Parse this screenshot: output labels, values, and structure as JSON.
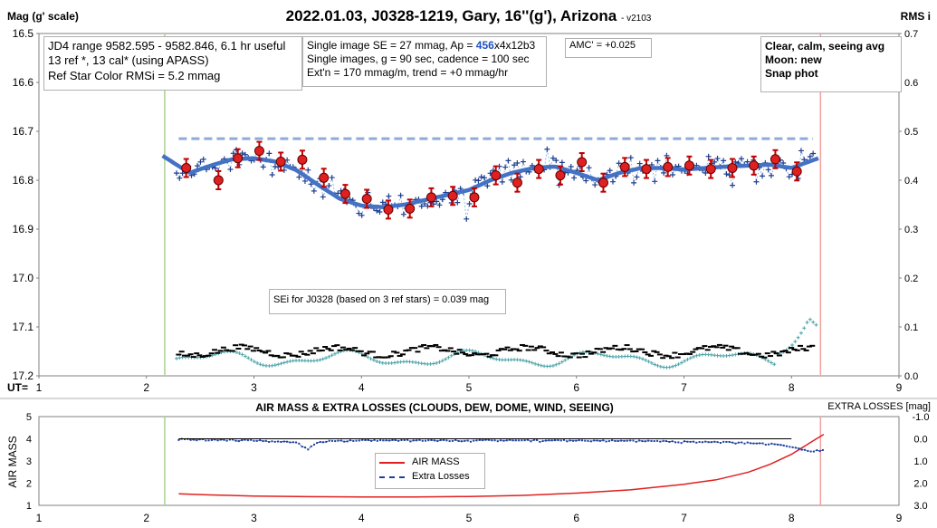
{
  "title": "2022.01.03, J0328-1219, Gary, 16''(g'), Arizona",
  "title_suffix": "- v2103",
  "top": {
    "ylabel_left": "Mag (g' scale)",
    "ylabel_right": "RMS i",
    "xlabel": "UT=",
    "y_ticks_left": [
      "16.5",
      "16.6",
      "16.7",
      "16.8",
      "16.9",
      "17.0",
      "17.1",
      "17.2"
    ],
    "y_ticks_right": [
      "0.7",
      "0.6",
      "0.5",
      "0.4",
      "0.3",
      "0.2",
      "0.1",
      "0.0"
    ],
    "x_ticks": [
      "1",
      "2",
      "3",
      "4",
      "5",
      "6",
      "7",
      "8",
      "9"
    ],
    "box1": [
      "JD4 range 9582.595 - 9582.846, 6.1 hr useful",
      "13 ref *, 13 cal* (using APASS)",
      "Ref Star Color RMSi = 5.2 mmag"
    ],
    "box2_line1_prefix": "Single image SE = 27 mmag, Ap = ",
    "box2_ap_value": "456",
    "box2_ap_suffix": "x4x12b3",
    "box2_line2": "Single images, g = 90 sec, cadence = 100 sec",
    "box2_line3": "Ext'n = 170 mmag/m, trend = +0 mmag/hr",
    "box3": "AMC' = +0.025",
    "box4": [
      "Clear, calm, seeing avg",
      "Moon: new",
      "Snap phot"
    ],
    "box5": "SEi for J0328 (based on 3 ref stars) = 0.039 mag"
  },
  "bottom": {
    "title": "AIR MASS & EXTRA LOSSES (CLOUDS, DEW, DOME, WIND, SEEING)",
    "right_header": "EXTRA LOSSES [mag]",
    "ylabel_left": "AIR MASS",
    "y_ticks_left": [
      "5",
      "4",
      "3",
      "2",
      "1"
    ],
    "y_ticks_right": [
      "-1.0",
      "0.0",
      "1.0",
      "2.0",
      "3.0"
    ],
    "x_ticks": [
      "1",
      "2",
      "3",
      "4",
      "5",
      "6",
      "7",
      "8",
      "9"
    ],
    "legend_airmass": "AIR MASS",
    "legend_losses": "Extra Losses"
  },
  "colors": {
    "fit": "#4472c4",
    "points": "#1f3f8f",
    "dashed": "#8eaadb",
    "red": "#e02020",
    "teal": "#4aa3a8",
    "black": "#000000",
    "green": "#a9d18e",
    "pink": "#f4a0a0"
  },
  "chart_data": [
    {
      "type": "scatter",
      "title": "2022.01.03, J0328-1219, Gary, 16''(g'), Arizona",
      "xlabel": "UT=",
      "ylabel": "Mag (g' scale)",
      "xlim": [
        1,
        9
      ],
      "ylim": [
        17.2,
        16.5
      ],
      "y2lim": [
        0.0,
        0.7
      ],
      "start_ut": 2.17,
      "end_ut": 8.27,
      "reference_mag": 16.715,
      "binned_means": {
        "x": [
          2.37,
          2.67,
          2.85,
          3.05,
          3.25,
          3.45,
          3.65,
          3.85,
          4.05,
          4.25,
          4.45,
          4.65,
          4.85,
          5.05,
          5.25,
          5.45,
          5.65,
          5.85,
          6.05,
          6.25,
          6.45,
          6.65,
          6.85,
          7.05,
          7.25,
          7.45,
          7.65,
          7.85,
          8.05
        ],
        "y": [
          16.775,
          16.8,
          16.755,
          16.74,
          16.762,
          16.758,
          16.795,
          16.828,
          16.838,
          16.86,
          16.858,
          16.835,
          16.832,
          16.835,
          16.79,
          16.805,
          16.777,
          16.79,
          16.763,
          16.805,
          16.773,
          16.777,
          16.773,
          16.77,
          16.777,
          16.775,
          16.77,
          16.757,
          16.782
        ]
      },
      "fit_curve": {
        "x": [
          2.15,
          2.4,
          2.6,
          2.8,
          3.0,
          3.2,
          3.4,
          3.6,
          3.8,
          4.0,
          4.2,
          4.4,
          4.6,
          4.8,
          5.0,
          5.2,
          5.4,
          5.6,
          5.8,
          6.0,
          6.2,
          6.4,
          6.6,
          6.8,
          7.0,
          7.2,
          7.4,
          7.6,
          7.8,
          8.0,
          8.25
        ],
        "y": [
          16.75,
          16.785,
          16.77,
          16.757,
          16.755,
          16.762,
          16.78,
          16.81,
          16.838,
          16.852,
          16.855,
          16.85,
          16.84,
          16.83,
          16.82,
          16.8,
          16.785,
          16.775,
          16.772,
          16.785,
          16.8,
          16.785,
          16.775,
          16.775,
          16.778,
          16.775,
          16.772,
          16.77,
          16.768,
          16.775,
          16.755
        ]
      },
      "rms_series": {
        "name": "RMS",
        "note": "teal crosses near 0.02-0.13 on right axis"
      }
    },
    {
      "type": "line",
      "title": "AIR MASS & EXTRA LOSSES (CLOUDS, DEW, DOME, WIND, SEEING)",
      "xlim": [
        1,
        9
      ],
      "ylim": [
        1,
        5
      ],
      "y2lim": [
        3.0,
        -1.0
      ],
      "series": [
        {
          "name": "AIR MASS",
          "x": [
            2.3,
            2.6,
            3.0,
            3.5,
            4.0,
            4.5,
            5.0,
            5.5,
            6.0,
            6.5,
            7.0,
            7.3,
            7.6,
            7.8,
            8.0,
            8.1,
            8.2,
            8.3
          ],
          "y": [
            1.52,
            1.47,
            1.42,
            1.39,
            1.38,
            1.38,
            1.4,
            1.45,
            1.55,
            1.7,
            1.95,
            2.15,
            2.5,
            2.85,
            3.3,
            3.6,
            3.9,
            4.2
          ]
        },
        {
          "name": "Extra Losses",
          "x": [
            2.3,
            3.0,
            3.4,
            3.5,
            3.6,
            4.0,
            5.0,
            6.0,
            7.0,
            7.5,
            7.8,
            8.0,
            8.2,
            8.3
          ],
          "y": [
            0.0,
            0.05,
            0.15,
            0.45,
            0.1,
            0.05,
            0.05,
            0.05,
            0.1,
            0.15,
            0.2,
            0.35,
            0.55,
            0.45
          ]
        }
      ]
    }
  ]
}
